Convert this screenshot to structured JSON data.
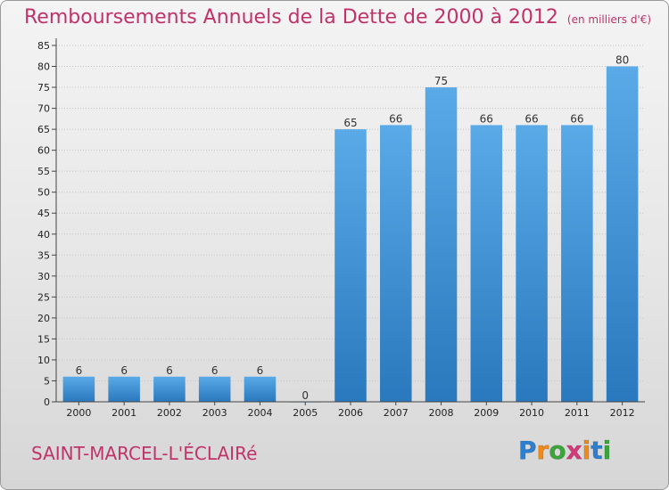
{
  "title": "Remboursements Annuels de la Dette de 2000 à 2012",
  "unit_note": "(en milliers d'€)",
  "place_name": "SAINT-MARCEL-L'ÉCLAIRé",
  "logo": {
    "text": "Proxiti",
    "letters": [
      "P",
      "r",
      "o",
      "x",
      "i",
      "t",
      "i"
    ],
    "colors": [
      "#2d7fd0",
      "#f08a1c",
      "#3aa63a",
      "#d33a7a",
      "#f08a1c",
      "#2d7fd0",
      "#3aa63a"
    ]
  },
  "colors": {
    "title": "#c0336a",
    "bar_light": "#5aaae8",
    "bar_dark": "#2a78bd"
  },
  "chart_data": {
    "type": "bar",
    "categories": [
      "2000",
      "2001",
      "2002",
      "2003",
      "2004",
      "2005",
      "2006",
      "2007",
      "2008",
      "2009",
      "2010",
      "2011",
      "2012"
    ],
    "values": [
      6,
      6,
      6,
      6,
      6,
      0,
      65,
      66,
      75,
      66,
      66,
      66,
      80
    ],
    "data_labels": [
      "6",
      "6",
      "6",
      "6",
      "6",
      "0",
      "65",
      "66",
      "75",
      "66",
      "66",
      "66",
      "80"
    ],
    "yticks": [
      "0",
      "5",
      "10",
      "15",
      "20",
      "25",
      "30",
      "35",
      "40",
      "45",
      "50",
      "55",
      "60",
      "65",
      "70",
      "75",
      "80",
      "85"
    ],
    "ylim": [
      0,
      85
    ],
    "grid": true,
    "xlabel": "",
    "ylabel": ""
  }
}
